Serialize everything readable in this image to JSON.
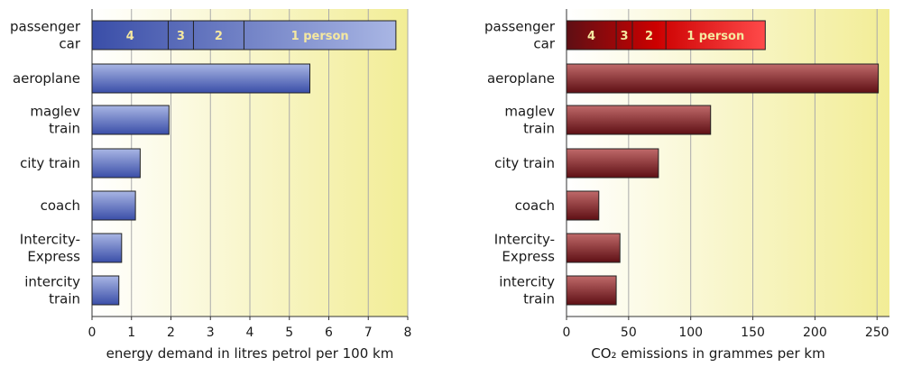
{
  "colors": {
    "panel_white": "#ffffff",
    "panel_yellow": "#f2ed96",
    "grid": "#aaaaaa",
    "axis": "#333333",
    "text": "#1a1a1a",
    "energy_bar_light": "#a9b6e4",
    "energy_bar_dark": "#3a4ea8",
    "co2_bar_light": "#c06a6a",
    "co2_bar_dark": "#5e0f14",
    "co2_car_light": "#ff4a4a",
    "co2_car_dark": "#cc0000",
    "segment_label": "#f5e8a0"
  },
  "chart_data": [
    {
      "type": "bar",
      "orientation": "horizontal",
      "xlabel": "energy demand in litres petrol per 100 km",
      "xlim": [
        0,
        8
      ],
      "xticks": [
        "0",
        "1",
        "2",
        "3",
        "4",
        "5",
        "6",
        "7",
        "8"
      ],
      "grid": true,
      "categories": [
        [
          "passenger",
          "car"
        ],
        [
          "aeroplane"
        ],
        [
          "maglev",
          "train"
        ],
        [
          "city train"
        ],
        [
          "coach"
        ],
        [
          "Intercity-",
          "Express"
        ],
        [
          "intercity",
          "train"
        ]
      ],
      "values": [
        7.7,
        5.52,
        1.95,
        1.22,
        1.1,
        0.75,
        0.68
      ],
      "passenger_car_occupancy": [
        {
          "label": "4",
          "value": 1.93
        },
        {
          "label": "3",
          "value": 2.57
        },
        {
          "label": "2",
          "value": 3.85
        },
        {
          "label": "1 person",
          "value": 7.7
        }
      ]
    },
    {
      "type": "bar",
      "orientation": "horizontal",
      "xlabel": "CO₂ emissions in grammes per km",
      "xlim": [
        0,
        260
      ],
      "xticks": [
        "0",
        "50",
        "100",
        "150",
        "200",
        "250"
      ],
      "grid": true,
      "categories": [
        [
          "passenger",
          "car"
        ],
        [
          "aeroplane"
        ],
        [
          "maglev",
          "train"
        ],
        [
          "city train"
        ],
        [
          "coach"
        ],
        [
          "Intercity-",
          "Express"
        ],
        [
          "intercity",
          "train"
        ]
      ],
      "values": [
        160,
        251,
        116,
        74,
        26,
        43,
        40
      ],
      "passenger_car_occupancy": [
        {
          "label": "4",
          "value": 40
        },
        {
          "label": "3",
          "value": 53
        },
        {
          "label": "2",
          "value": 80
        },
        {
          "label": "1 person",
          "value": 160
        }
      ]
    }
  ]
}
